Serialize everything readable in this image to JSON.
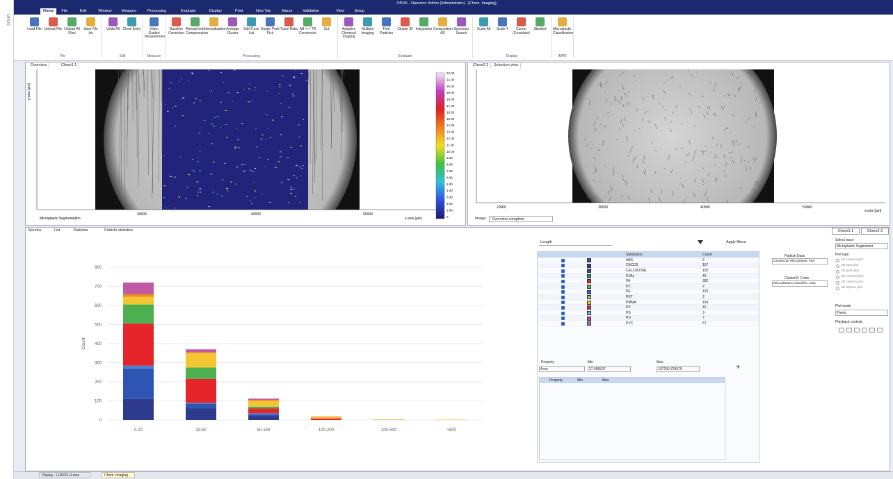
{
  "window": {
    "title": "OPUS - Operator: Admin (Administrator) - [Chem. Imaging]",
    "side_label": "OPUS"
  },
  "menu": [
    "Home",
    "File",
    "Edit",
    "Window",
    "Measure",
    "Processing",
    "Evaluate",
    "Display",
    "Print",
    "New Tab",
    "Macro",
    "Validation",
    "View",
    "Setup"
  ],
  "ribbon": [
    {
      "group": "File",
      "buttons": [
        "Load File",
        "Unload File",
        "Unload All Files",
        "Save File As"
      ]
    },
    {
      "group": "Edit",
      "buttons": [
        "Undo All",
        "Clone Entry"
      ]
    },
    {
      "group": "Measure",
      "buttons": [
        "Video Guided Measurement"
      ]
    },
    {
      "group": "Processing",
      "buttons": [
        "Baseline Correction",
        "Atmospheric Compensation",
        "Normalization",
        "Average Cluster",
        "Edit Trace List",
        "Single Peak Pick",
        "Trace Ratio",
        "AB <-> TR Conversion",
        "Cut"
      ]
    },
    {
      "group": "Evaluate",
      "buttons": [
        "Adaptive Chemical Imaging",
        "Multiple Imaging",
        "Find Particles",
        "Cluster ID",
        "Integration",
        "Composition-AD",
        "Spectrum Search"
      ]
    },
    {
      "group": "Display",
      "buttons": [
        "Scale All",
        "Scale Y",
        "Cursor (Crosshair)",
        "Stacked"
      ]
    },
    {
      "group": "IMPD",
      "buttons": [
        "Microplastic Classification"
      ]
    }
  ],
  "overview_pane": {
    "tabs": [
      "Overview",
      "Chem1 1"
    ],
    "y_axis_label": "y-axis [µm]",
    "x_axis_label": "x-axis [µm]",
    "xticks": [
      "30000",
      "40000",
      "50000"
    ],
    "caption": "Microplastic Segmentation",
    "colorbar": [
      "22.00",
      "21.00",
      "20.00",
      "19.00",
      "18.00",
      "17.00",
      "16.00",
      "15.00",
      "14.00",
      "13.00",
      "12.00",
      "11.00",
      "10.00",
      "9.00",
      "8.00",
      "7.00",
      "6.00",
      "5.00",
      "4.00",
      "3.00",
      "2.00",
      "1.00",
      "0"
    ]
  },
  "selection_pane": {
    "tabs": [
      "Chem2 2",
      "Selection view"
    ],
    "xticks": [
      "20000",
      "30000",
      "40000",
      "50000"
    ],
    "x_axis_label": "x-axis [µm]",
    "image_label": "Image:",
    "image_option": "Overview complete"
  },
  "lower_tabs": [
    "Spectra",
    "List",
    "Particles",
    "Particle statistics"
  ],
  "chart_data": {
    "type": "stacked_bar",
    "y_axis_label": "Count",
    "categories": [
      "0-20",
      "20-50",
      "50-100",
      "100-200",
      "200-500",
      ">500"
    ],
    "series": [
      {
        "color": "#2e3a8c",
        "values": [
          110,
          60,
          20,
          0,
          0,
          0
        ]
      },
      {
        "color": "#2f55b4",
        "values": [
          160,
          25,
          10,
          0,
          0,
          0
        ]
      },
      {
        "color": "#4a7fd0",
        "values": [
          15,
          5,
          5,
          0,
          0,
          0
        ]
      },
      {
        "color": "#e5252a",
        "values": [
          220,
          125,
          25,
          8,
          1,
          0
        ]
      },
      {
        "color": "#4caf50",
        "values": [
          100,
          60,
          10,
          0,
          0,
          0
        ]
      },
      {
        "color": "#f2c531",
        "values": [
          40,
          75,
          30,
          6,
          2,
          2
        ]
      },
      {
        "color": "#f08a24",
        "values": [
          15,
          5,
          5,
          4,
          0,
          0
        ]
      },
      {
        "color": "#c05aa5",
        "values": [
          60,
          15,
          7,
          0,
          0,
          0
        ]
      }
    ],
    "ylim": [
      0,
      800
    ],
    "yticks": [
      0,
      100,
      200,
      300,
      400,
      500,
      600,
      700,
      800
    ],
    "grid": true
  },
  "substances": {
    "filter_field": "Length",
    "apply": "Apply filters",
    "headers": [
      "Substance",
      "Count"
    ],
    "rows": [
      [
        "ABS",
        "2"
      ],
      [
        "CACO3",
        "157"
      ],
      [
        "CELLULOSE",
        "102"
      ],
      [
        "EVAc",
        "40"
      ],
      [
        "PA",
        "392"
      ],
      [
        "PC",
        "2"
      ],
      [
        "PE",
        "193"
      ],
      [
        "PET",
        "2"
      ],
      [
        "PMMA",
        "164"
      ],
      [
        "PP",
        "16"
      ],
      [
        "PS",
        "3"
      ],
      [
        "PU",
        "7"
      ],
      [
        "PVC",
        "67"
      ]
    ],
    "colors": [
      "#3a55b0",
      "#2a3a8a",
      "#3a4a9a",
      "#2e8a8a",
      "#e02525",
      "#5cb85c",
      "#3a6ad0",
      "#9bc53d",
      "#e8c830",
      "#d93030",
      "#6aaee0",
      "#d04590",
      "#c060b0"
    ]
  },
  "particle_data": {
    "label": "Particle Data",
    "value": "ClusterList Microplastic Part",
    "cost_label": "ClusterID Costs",
    "cost_value": "Microplastics Classifier, Clus"
  },
  "property_filter": {
    "labels": [
      "Property",
      "Min",
      "Max"
    ],
    "property": "Area",
    "min": "27.099507",
    "max": "107250.793575",
    "headers": [
      "Property",
      "Min",
      "Max"
    ]
  },
  "side_panel": {
    "tabs": [
      "Chem1 1",
      "Chem2 2"
    ],
    "select_trace": "Select trace",
    "trace": "Microplastic Segmentat",
    "plot_type": "Plot type",
    "plot_options": [
      "2D contour plot",
      "2D spot plot",
      "2D pixel plot",
      "3D contour plot",
      "3D column plot",
      "3D sphere plot"
    ],
    "plot_mode": "Plot mode",
    "mode": "Pixels",
    "playback": "Playback controls"
  },
  "status_tabs": [
    "Display - LUMOS-II.mea",
    "Chem. Imaging"
  ]
}
